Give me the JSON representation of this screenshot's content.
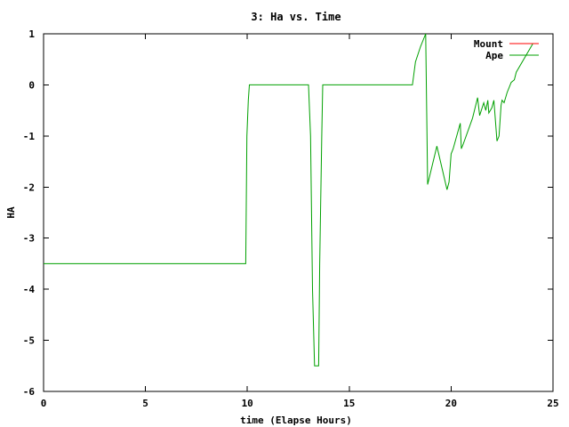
{
  "chart_data": {
    "type": "line",
    "title": "3: Ha vs. Time",
    "xlabel": "time (Elapse Hours)",
    "ylabel": "HA",
    "xlim": [
      0,
      25
    ],
    "ylim": [
      -6,
      1
    ],
    "xticks": [
      0,
      5,
      10,
      15,
      20,
      25
    ],
    "yticks": [
      1,
      0,
      -1,
      -2,
      -3,
      -4,
      -5,
      -6
    ],
    "grid": false,
    "legend_position": "top-right",
    "series": [
      {
        "name": "Mount",
        "color": "#ff0000",
        "x": [],
        "y": []
      },
      {
        "name": "Ape",
        "color": "#00a000",
        "x": [
          0,
          9.92,
          9.98,
          10.05,
          10.1,
          13.0,
          13.1,
          13.2,
          13.3,
          13.5,
          13.55,
          13.65,
          13.7,
          18.1,
          18.25,
          18.5,
          18.75,
          18.85,
          19.3,
          19.8,
          19.9,
          20.0,
          20.1,
          20.45,
          20.5,
          20.6,
          21.05,
          21.3,
          21.4,
          21.6,
          21.7,
          21.8,
          21.85,
          22.0,
          22.1,
          22.25,
          22.35,
          22.45,
          22.5,
          22.6,
          22.75,
          22.95,
          23.1,
          23.2,
          24.0
        ],
        "y": [
          -3.5,
          -3.5,
          -1.0,
          -0.3,
          0.0,
          0.0,
          -1.0,
          -4.0,
          -5.5,
          -5.5,
          -3.5,
          -1.0,
          0.0,
          0.0,
          0.45,
          0.75,
          1.0,
          -1.95,
          -1.2,
          -2.05,
          -1.9,
          -1.35,
          -1.25,
          -0.75,
          -1.25,
          -1.15,
          -0.65,
          -0.25,
          -0.6,
          -0.35,
          -0.5,
          -0.3,
          -0.55,
          -0.45,
          -0.3,
          -1.1,
          -1.0,
          -0.4,
          -0.3,
          -0.35,
          -0.15,
          0.05,
          0.1,
          0.25,
          0.8
        ]
      }
    ]
  }
}
